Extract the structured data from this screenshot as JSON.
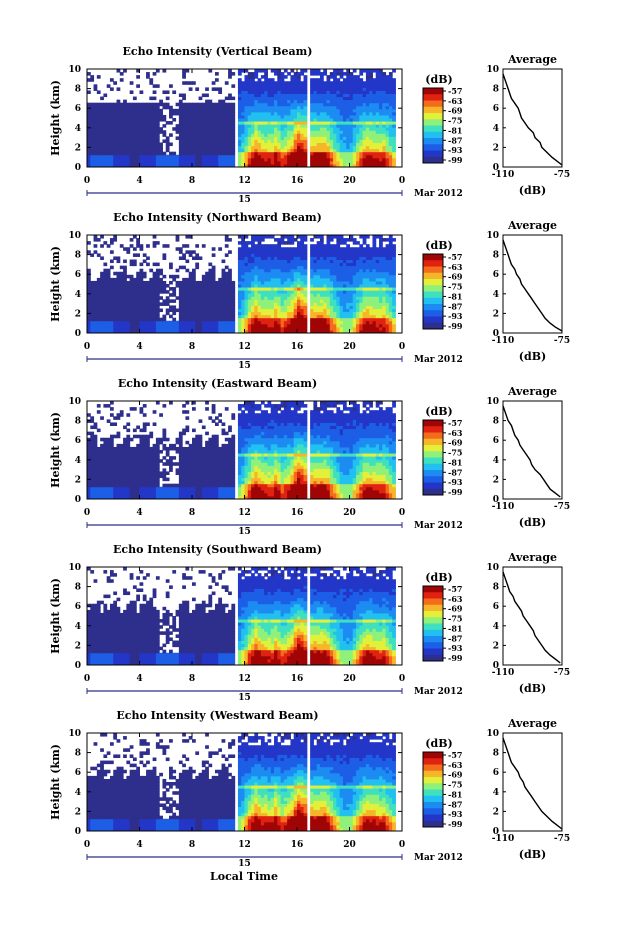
{
  "footer": {
    "xlabel": "Local Time"
  },
  "colors": {
    "palette": [
      "#2e2f8c",
      "#2336c8",
      "#1d5ee6",
      "#1d8cf2",
      "#22c0f0",
      "#3fe0c0",
      "#8ff07a",
      "#e3f03a",
      "#f7b62a",
      "#f46b1c",
      "#e02210",
      "#a00505"
    ]
  },
  "chart_data": [
    {
      "type": "heatmap",
      "title": "Echo Intensity (Vertical Beam)",
      "ylabel": "Height (km)",
      "x_ticks": [
        "0",
        "4",
        "8",
        "12",
        "16",
        "20",
        "0"
      ],
      "y_ticks": [
        "0",
        "2",
        "4",
        "6",
        "8",
        "10"
      ],
      "date_day": "15",
      "date_label": "Mar 2012",
      "xlim": [
        0,
        24
      ],
      "ylim": [
        0,
        10
      ],
      "colorbar": {
        "unit": "(dB)",
        "ticks": [
          "-57",
          "-63",
          "-69",
          "-75",
          "-81",
          "-87",
          "-93",
          "-99"
        ],
        "range": [
          -99,
          -57
        ]
      },
      "average": {
        "title": "Average",
        "xlabel": "(dB)",
        "x_ticks": [
          "-110",
          "-75"
        ],
        "xlim": [
          -110,
          -75
        ],
        "values_db": [
          -75,
          -78,
          -81,
          -84,
          -87,
          -88,
          -91,
          -92,
          -95,
          -97,
          -99,
          -100,
          -101,
          -103,
          -105,
          -106,
          -107,
          -108,
          -109,
          -110
        ],
        "heights_km": [
          0.2,
          0.6,
          1.0,
          1.5,
          2.0,
          2.5,
          3.0,
          3.5,
          4.0,
          4.5,
          5.0,
          5.5,
          6.0,
          6.5,
          7.0,
          7.5,
          8.0,
          8.5,
          9.0,
          9.5
        ]
      }
    },
    {
      "type": "heatmap",
      "title": "Echo Intensity (Northward Beam)",
      "ylabel": "Height (km)",
      "x_ticks": [
        "0",
        "4",
        "8",
        "12",
        "16",
        "20",
        "0"
      ],
      "y_ticks": [
        "0",
        "2",
        "4",
        "6",
        "8",
        "10"
      ],
      "date_day": "15",
      "date_label": "Mar 2012",
      "xlim": [
        0,
        24
      ],
      "ylim": [
        0,
        10
      ],
      "colorbar": {
        "unit": "(dB)",
        "ticks": [
          "-57",
          "-63",
          "-69",
          "-75",
          "-81",
          "-87",
          "-93",
          "-99"
        ],
        "range": [
          -99,
          -57
        ]
      },
      "average": {
        "title": "Average",
        "xlabel": "(dB)",
        "x_ticks": [
          "-110",
          "-75"
        ],
        "xlim": [
          -110,
          -75
        ],
        "values_db": [
          -75,
          -79,
          -82,
          -85,
          -87,
          -89,
          -91,
          -93,
          -95,
          -97,
          -99,
          -100,
          -102,
          -103,
          -105,
          -106,
          -107,
          -108,
          -109,
          -110
        ],
        "heights_km": [
          0.2,
          0.6,
          1.0,
          1.5,
          2.0,
          2.5,
          3.0,
          3.5,
          4.0,
          4.5,
          5.0,
          5.5,
          6.0,
          6.5,
          7.0,
          7.5,
          8.0,
          8.5,
          9.0,
          9.5
        ]
      }
    },
    {
      "type": "heatmap",
      "title": "Echo Intensity (Eastward Beam)",
      "ylabel": "Height (km)",
      "x_ticks": [
        "0",
        "4",
        "8",
        "12",
        "16",
        "20",
        "0"
      ],
      "y_ticks": [
        "0",
        "2",
        "4",
        "6",
        "8",
        "10"
      ],
      "date_day": "15",
      "date_label": "Mar 2012",
      "xlim": [
        0,
        24
      ],
      "ylim": [
        0,
        10
      ],
      "colorbar": {
        "unit": "(dB)",
        "ticks": [
          "-57",
          "-63",
          "-69",
          "-75",
          "-81",
          "-87",
          "-93",
          "-99"
        ],
        "range": [
          -99,
          -57
        ]
      },
      "average": {
        "title": "Average",
        "xlabel": "(dB)",
        "x_ticks": [
          "-110",
          "-75"
        ],
        "xlim": [
          -110,
          -75
        ],
        "values_db": [
          -76,
          -79,
          -82,
          -84,
          -86,
          -88,
          -91,
          -93,
          -94,
          -96,
          -98,
          -100,
          -101,
          -103,
          -104,
          -105,
          -107,
          -108,
          -109,
          -110
        ],
        "heights_km": [
          0.2,
          0.6,
          1.0,
          1.5,
          2.0,
          2.5,
          3.0,
          3.5,
          4.0,
          4.5,
          5.0,
          5.5,
          6.0,
          6.5,
          7.0,
          7.5,
          8.0,
          8.5,
          9.0,
          9.5
        ]
      }
    },
    {
      "type": "heatmap",
      "title": "Echo Intensity (Southward Beam)",
      "ylabel": "Height (km)",
      "x_ticks": [
        "0",
        "4",
        "8",
        "12",
        "16",
        "20",
        "0"
      ],
      "y_ticks": [
        "0",
        "2",
        "4",
        "6",
        "8",
        "10"
      ],
      "date_day": "15",
      "date_label": "Mar 2012",
      "xlim": [
        0,
        24
      ],
      "ylim": [
        0,
        10
      ],
      "colorbar": {
        "unit": "(dB)",
        "ticks": [
          "-57",
          "-63",
          "-69",
          "-75",
          "-81",
          "-87",
          "-93",
          "-99"
        ],
        "range": [
          -99,
          -57
        ]
      },
      "average": {
        "title": "Average",
        "xlabel": "(dB)",
        "x_ticks": [
          "-110",
          "-75"
        ],
        "xlim": [
          -110,
          -75
        ],
        "values_db": [
          -76,
          -79,
          -82,
          -85,
          -87,
          -89,
          -91,
          -92,
          -94,
          -96,
          -98,
          -99,
          -101,
          -103,
          -104,
          -106,
          -107,
          -108,
          -109,
          -110
        ],
        "heights_km": [
          0.2,
          0.6,
          1.0,
          1.5,
          2.0,
          2.5,
          3.0,
          3.5,
          4.0,
          4.5,
          5.0,
          5.5,
          6.0,
          6.5,
          7.0,
          7.5,
          8.0,
          8.5,
          9.0,
          9.5
        ]
      }
    },
    {
      "type": "heatmap",
      "title": "Echo Intensity (Westward Beam)",
      "ylabel": "Height (km)",
      "x_ticks": [
        "0",
        "4",
        "8",
        "12",
        "16",
        "20",
        "0"
      ],
      "y_ticks": [
        "0",
        "2",
        "4",
        "6",
        "8",
        "10"
      ],
      "date_day": "15",
      "date_label": "Mar 2012",
      "xlim": [
        0,
        24
      ],
      "ylim": [
        0,
        10
      ],
      "colorbar": {
        "unit": "(dB)",
        "ticks": [
          "-57",
          "-63",
          "-69",
          "-75",
          "-81",
          "-87",
          "-93",
          "-99"
        ],
        "range": [
          -99,
          -57
        ]
      },
      "average": {
        "title": "Average",
        "xlabel": "(dB)",
        "x_ticks": [
          "-110",
          "-75"
        ],
        "xlim": [
          -110,
          -75
        ],
        "values_db": [
          -75,
          -78,
          -81,
          -84,
          -87,
          -89,
          -91,
          -93,
          -95,
          -97,
          -98,
          -100,
          -101,
          -103,
          -105,
          -106,
          -107,
          -108,
          -109,
          -110
        ],
        "heights_km": [
          0.2,
          0.6,
          1.0,
          1.5,
          2.0,
          2.5,
          3.0,
          3.5,
          4.0,
          4.5,
          5.0,
          5.5,
          6.0,
          6.5,
          7.0,
          7.5,
          8.0,
          8.5,
          9.0,
          9.5
        ]
      }
    }
  ]
}
